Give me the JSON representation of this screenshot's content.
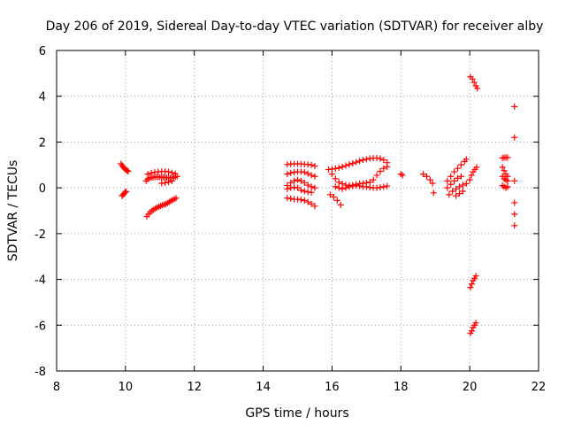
{
  "chart_data": {
    "type": "scatter",
    "title": "Day 206 of 2019, Sidereal Day-to-day VTEC variation (SDTVAR) for receiver alby",
    "xlabel": "GPS time / hours",
    "ylabel": "SDTVAR / TECUs",
    "xlim": [
      8,
      22
    ],
    "ylim": [
      -8,
      6
    ],
    "xticks": [
      8,
      10,
      12,
      14,
      16,
      18,
      20,
      22
    ],
    "yticks": [
      -8,
      -6,
      -4,
      -2,
      0,
      2,
      4,
      6
    ],
    "grid": true,
    "marker": "+",
    "color": "#ff0000",
    "series": [
      {
        "name": "SDTVAR",
        "points": [
          [
            9.87,
            1.05
          ],
          [
            9.9,
            0.98
          ],
          [
            9.93,
            0.92
          ],
          [
            9.96,
            0.86
          ],
          [
            9.99,
            0.82
          ],
          [
            10.02,
            0.78
          ],
          [
            10.05,
            0.75
          ],
          [
            10.08,
            0.72
          ],
          [
            9.9,
            -0.35
          ],
          [
            9.93,
            -0.3
          ],
          [
            9.96,
            -0.25
          ],
          [
            9.99,
            -0.2
          ],
          [
            10.02,
            -0.16
          ],
          [
            10.62,
            -1.25
          ],
          [
            10.67,
            -1.15
          ],
          [
            10.72,
            -1.07
          ],
          [
            10.77,
            -1.0
          ],
          [
            10.82,
            -0.95
          ],
          [
            10.87,
            -0.9
          ],
          [
            10.92,
            -0.86
          ],
          [
            10.97,
            -0.82
          ],
          [
            11.02,
            -0.79
          ],
          [
            11.07,
            -0.76
          ],
          [
            11.12,
            -0.74
          ],
          [
            11.17,
            -0.71
          ],
          [
            11.22,
            -0.67
          ],
          [
            11.27,
            -0.62
          ],
          [
            11.32,
            -0.57
          ],
          [
            11.37,
            -0.53
          ],
          [
            11.42,
            -0.49
          ],
          [
            11.47,
            -0.45
          ],
          [
            10.6,
            0.3
          ],
          [
            10.65,
            0.38
          ],
          [
            10.7,
            0.43
          ],
          [
            10.75,
            0.45
          ],
          [
            10.8,
            0.46
          ],
          [
            10.85,
            0.47
          ],
          [
            10.9,
            0.48
          ],
          [
            10.95,
            0.48
          ],
          [
            11.0,
            0.47
          ],
          [
            11.05,
            0.46
          ],
          [
            11.1,
            0.46
          ],
          [
            11.15,
            0.45
          ],
          [
            11.2,
            0.44
          ],
          [
            11.25,
            0.44
          ],
          [
            11.3,
            0.43
          ],
          [
            11.35,
            0.44
          ],
          [
            11.4,
            0.45
          ],
          [
            11.45,
            0.48
          ],
          [
            11.5,
            0.5
          ],
          [
            10.65,
            0.6
          ],
          [
            10.75,
            0.65
          ],
          [
            10.85,
            0.68
          ],
          [
            10.95,
            0.7
          ],
          [
            11.05,
            0.72
          ],
          [
            11.15,
            0.72
          ],
          [
            11.25,
            0.7
          ],
          [
            11.35,
            0.66
          ],
          [
            11.45,
            0.62
          ],
          [
            11.05,
            0.2
          ],
          [
            11.15,
            0.22
          ],
          [
            11.25,
            0.25
          ],
          [
            11.35,
            0.3
          ],
          [
            14.7,
            1.02
          ],
          [
            14.8,
            1.04
          ],
          [
            14.9,
            1.05
          ],
          [
            15.0,
            1.05
          ],
          [
            15.1,
            1.04
          ],
          [
            15.2,
            1.03
          ],
          [
            15.3,
            1.02
          ],
          [
            15.4,
            1.0
          ],
          [
            15.5,
            0.95
          ],
          [
            14.7,
            0.6
          ],
          [
            14.8,
            0.65
          ],
          [
            14.9,
            0.68
          ],
          [
            15.0,
            0.7
          ],
          [
            15.1,
            0.7
          ],
          [
            15.2,
            0.68
          ],
          [
            15.3,
            0.62
          ],
          [
            15.4,
            0.55
          ],
          [
            15.5,
            0.5
          ],
          [
            14.7,
            0.1
          ],
          [
            14.8,
            0.22
          ],
          [
            14.9,
            0.3
          ],
          [
            15.0,
            0.35
          ],
          [
            15.1,
            0.3
          ],
          [
            15.2,
            0.22
          ],
          [
            15.3,
            0.12
          ],
          [
            15.4,
            0.05
          ],
          [
            15.5,
            0.0
          ],
          [
            14.7,
            -0.05
          ],
          [
            14.8,
            0.0
          ],
          [
            14.9,
            0.02
          ],
          [
            15.0,
            0.0
          ],
          [
            15.1,
            -0.1
          ],
          [
            15.2,
            -0.15
          ],
          [
            15.3,
            -0.18
          ],
          [
            15.4,
            -0.2
          ],
          [
            14.7,
            -0.45
          ],
          [
            14.8,
            -0.47
          ],
          [
            14.9,
            -0.5
          ],
          [
            15.0,
            -0.5
          ],
          [
            15.1,
            -0.52
          ],
          [
            15.2,
            -0.55
          ],
          [
            15.3,
            -0.62
          ],
          [
            15.4,
            -0.7
          ],
          [
            15.5,
            -0.8
          ],
          [
            15.9,
            0.8
          ],
          [
            16.0,
            0.82
          ],
          [
            16.1,
            0.84
          ],
          [
            16.2,
            0.87
          ],
          [
            16.3,
            0.92
          ],
          [
            16.4,
            0.97
          ],
          [
            16.5,
            1.02
          ],
          [
            16.6,
            1.07
          ],
          [
            16.7,
            1.12
          ],
          [
            16.8,
            1.17
          ],
          [
            16.9,
            1.22
          ],
          [
            17.0,
            1.25
          ],
          [
            17.1,
            1.28
          ],
          [
            17.2,
            1.3
          ],
          [
            17.3,
            1.3
          ],
          [
            17.4,
            1.28
          ],
          [
            17.5,
            1.22
          ],
          [
            17.6,
            1.1
          ],
          [
            15.95,
            -0.3
          ],
          [
            16.05,
            -0.4
          ],
          [
            16.15,
            -0.55
          ],
          [
            16.25,
            -0.75
          ],
          [
            16.0,
            0.6
          ],
          [
            16.1,
            0.4
          ],
          [
            16.2,
            0.25
          ],
          [
            16.3,
            0.18
          ],
          [
            16.4,
            0.12
          ],
          [
            16.5,
            0.1
          ],
          [
            16.6,
            0.12
          ],
          [
            16.7,
            0.15
          ],
          [
            16.8,
            0.18
          ],
          [
            16.9,
            0.2
          ],
          [
            17.0,
            0.22
          ],
          [
            17.1,
            0.25
          ],
          [
            17.2,
            0.35
          ],
          [
            17.3,
            0.55
          ],
          [
            17.4,
            0.72
          ],
          [
            17.5,
            0.85
          ],
          [
            17.6,
            0.92
          ],
          [
            16.1,
            0.05
          ],
          [
            16.2,
            0.0
          ],
          [
            16.3,
            -0.05
          ],
          [
            16.4,
            0.0
          ],
          [
            16.5,
            0.05
          ],
          [
            16.6,
            0.08
          ],
          [
            16.7,
            0.1
          ],
          [
            16.8,
            0.08
          ],
          [
            16.9,
            0.05
          ],
          [
            17.0,
            0.05
          ],
          [
            17.1,
            0.02
          ],
          [
            17.2,
            0.0
          ],
          [
            17.3,
            0.0
          ],
          [
            17.4,
            0.02
          ],
          [
            17.5,
            0.05
          ],
          [
            17.6,
            0.08
          ],
          [
            18.0,
            0.6
          ],
          [
            18.05,
            0.55
          ],
          [
            18.65,
            0.6
          ],
          [
            18.75,
            0.5
          ],
          [
            18.85,
            0.35
          ],
          [
            18.92,
            0.2
          ],
          [
            18.95,
            -0.22
          ],
          [
            19.35,
            0.3
          ],
          [
            19.45,
            0.5
          ],
          [
            19.55,
            0.7
          ],
          [
            19.65,
            0.85
          ],
          [
            19.75,
            1.0
          ],
          [
            19.85,
            1.15
          ],
          [
            19.9,
            1.25
          ],
          [
            19.35,
            0.0
          ],
          [
            19.45,
            0.15
          ],
          [
            19.55,
            0.3
          ],
          [
            19.65,
            0.42
          ],
          [
            19.75,
            0.5
          ],
          [
            19.4,
            -0.3
          ],
          [
            19.5,
            -0.15
          ],
          [
            19.6,
            -0.05
          ],
          [
            19.7,
            0.05
          ],
          [
            19.8,
            0.12
          ],
          [
            19.9,
            0.18
          ],
          [
            19.6,
            -0.35
          ],
          [
            19.7,
            -0.25
          ],
          [
            19.8,
            -0.15
          ],
          [
            20.0,
            0.35
          ],
          [
            20.05,
            0.55
          ],
          [
            20.1,
            0.7
          ],
          [
            20.15,
            0.8
          ],
          [
            20.2,
            0.9
          ],
          [
            20.02,
            4.85
          ],
          [
            20.08,
            4.75
          ],
          [
            20.13,
            4.6
          ],
          [
            20.18,
            4.45
          ],
          [
            20.22,
            4.35
          ],
          [
            20.02,
            -4.35
          ],
          [
            20.06,
            -4.2
          ],
          [
            20.1,
            -4.05
          ],
          [
            20.14,
            -3.95
          ],
          [
            20.18,
            -3.85
          ],
          [
            20.02,
            -6.35
          ],
          [
            20.06,
            -6.25
          ],
          [
            20.1,
            -6.1
          ],
          [
            20.14,
            -6.0
          ],
          [
            20.18,
            -5.9
          ],
          [
            20.95,
            1.3
          ],
          [
            21.0,
            1.32
          ],
          [
            21.05,
            1.33
          ],
          [
            21.1,
            1.32
          ],
          [
            20.95,
            0.9
          ],
          [
            21.0,
            0.75
          ],
          [
            21.05,
            0.6
          ],
          [
            21.1,
            0.5
          ],
          [
            20.95,
            0.5
          ],
          [
            21.0,
            0.4
          ],
          [
            21.05,
            0.35
          ],
          [
            21.1,
            0.3
          ],
          [
            20.95,
            0.1
          ],
          [
            21.0,
            0.05
          ],
          [
            21.05,
            0.0
          ],
          [
            21.1,
            0.05
          ],
          [
            21.3,
            3.55
          ],
          [
            21.3,
            2.2
          ],
          [
            21.3,
            0.3
          ],
          [
            21.3,
            -0.65
          ],
          [
            21.3,
            -1.15
          ],
          [
            21.3,
            -1.65
          ]
        ]
      }
    ]
  }
}
